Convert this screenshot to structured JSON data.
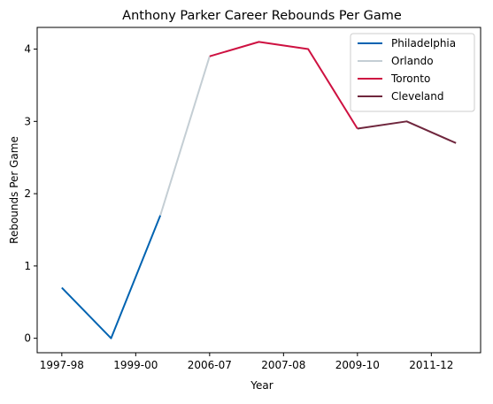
{
  "chart_data": {
    "type": "line",
    "title": "Anthony Parker Career Rebounds Per Game",
    "xlabel": "Year",
    "ylabel": "Rebounds Per Game",
    "x_tick_labels": [
      "1997-98",
      "1999-00",
      "2006-07",
      "2007-08",
      "2009-10",
      "2011-12"
    ],
    "ylim": [
      -0.2,
      4.3
    ],
    "y_ticks": [
      0,
      1,
      2,
      3,
      4
    ],
    "grid": false,
    "legend_position": "top-right",
    "series": [
      {
        "name": "Philadelphia",
        "color": "#0063B1",
        "x": [
          0,
          1,
          2
        ],
        "values": [
          0.7,
          0.0,
          1.7
        ]
      },
      {
        "name": "Orlando",
        "color": "#C4CED4",
        "x": [
          2,
          3
        ],
        "values": [
          1.7,
          3.9
        ]
      },
      {
        "name": "Toronto",
        "color": "#CE1141",
        "x": [
          3,
          4,
          5,
          6
        ],
        "values": [
          3.9,
          4.1,
          4.0,
          2.9
        ]
      },
      {
        "name": "Cleveland",
        "color": "#6F263D",
        "x": [
          6,
          7,
          8
        ],
        "values": [
          2.9,
          3.0,
          2.7
        ]
      }
    ]
  }
}
